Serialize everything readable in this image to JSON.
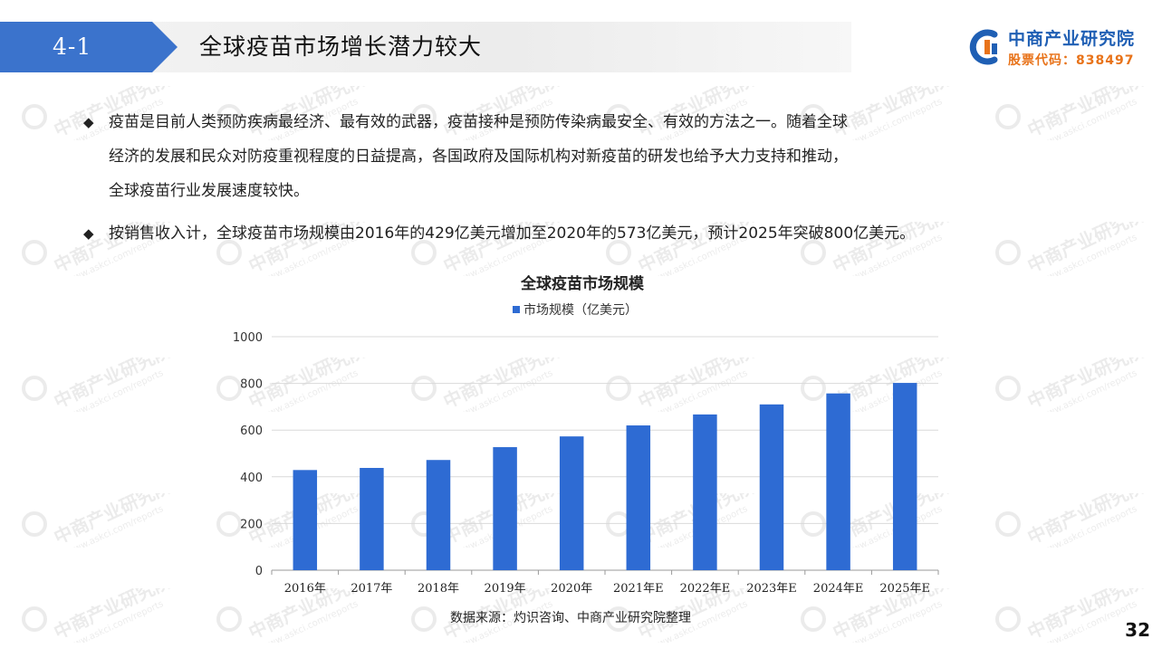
{
  "header": {
    "section_number": "4-1",
    "title": "全球疫苗市场增长潜力较大"
  },
  "logo": {
    "name": "中商产业研究院",
    "stock_code": "股票代码：838497",
    "watermark_text": "中商产业研究院",
    "watermark_url": "www.askci.com/reports"
  },
  "colors": {
    "accent_blue": "#3b73cc",
    "bar_blue": "#2e6bd3",
    "logo_blue": "#1f5fb4",
    "logo_orange": "#e8731a"
  },
  "bullets": [
    {
      "lines": [
        "疫苗是目前人类预防疾病最经济、最有效的武器，疫苗接种是预防传染病最安全、有效的方法之一。随着全球",
        "经济的发展和民众对防疫重视程度的日益提高，各国政府及国际机构对新疫苗的研发也给予大力支持和推动，",
        "全球疫苗行业发展速度较快。"
      ]
    },
    {
      "lines": [
        "按销售收入计，全球疫苗市场规模由2016年的429亿美元增加至2020年的573亿美元，预计2025年突破800亿美元。"
      ]
    }
  ],
  "bullet_symbol": "◆",
  "chart_data": {
    "type": "bar",
    "title": "全球疫苗市场规模",
    "categories": [
      "2016年",
      "2017年",
      "2018年",
      "2019年",
      "2020年",
      "2021年E",
      "2022年E",
      "2023年E",
      "2024年E",
      "2025年E"
    ],
    "series": [
      {
        "name": "市场规模（亿美元）",
        "values": [
          429,
          438,
          472,
          527,
          573,
          620,
          667,
          710,
          757,
          802
        ]
      }
    ],
    "ylim": [
      0,
      1000
    ],
    "yticks": [
      0,
      200,
      400,
      600,
      800,
      1000
    ],
    "ytick_labels": [
      "0",
      "200",
      "400",
      "600",
      "800",
      "1000"
    ],
    "grid": true,
    "legend_position": "top",
    "source": "数据来源：灼识咨询、中商产业研究院整理"
  },
  "slide_number": "32"
}
